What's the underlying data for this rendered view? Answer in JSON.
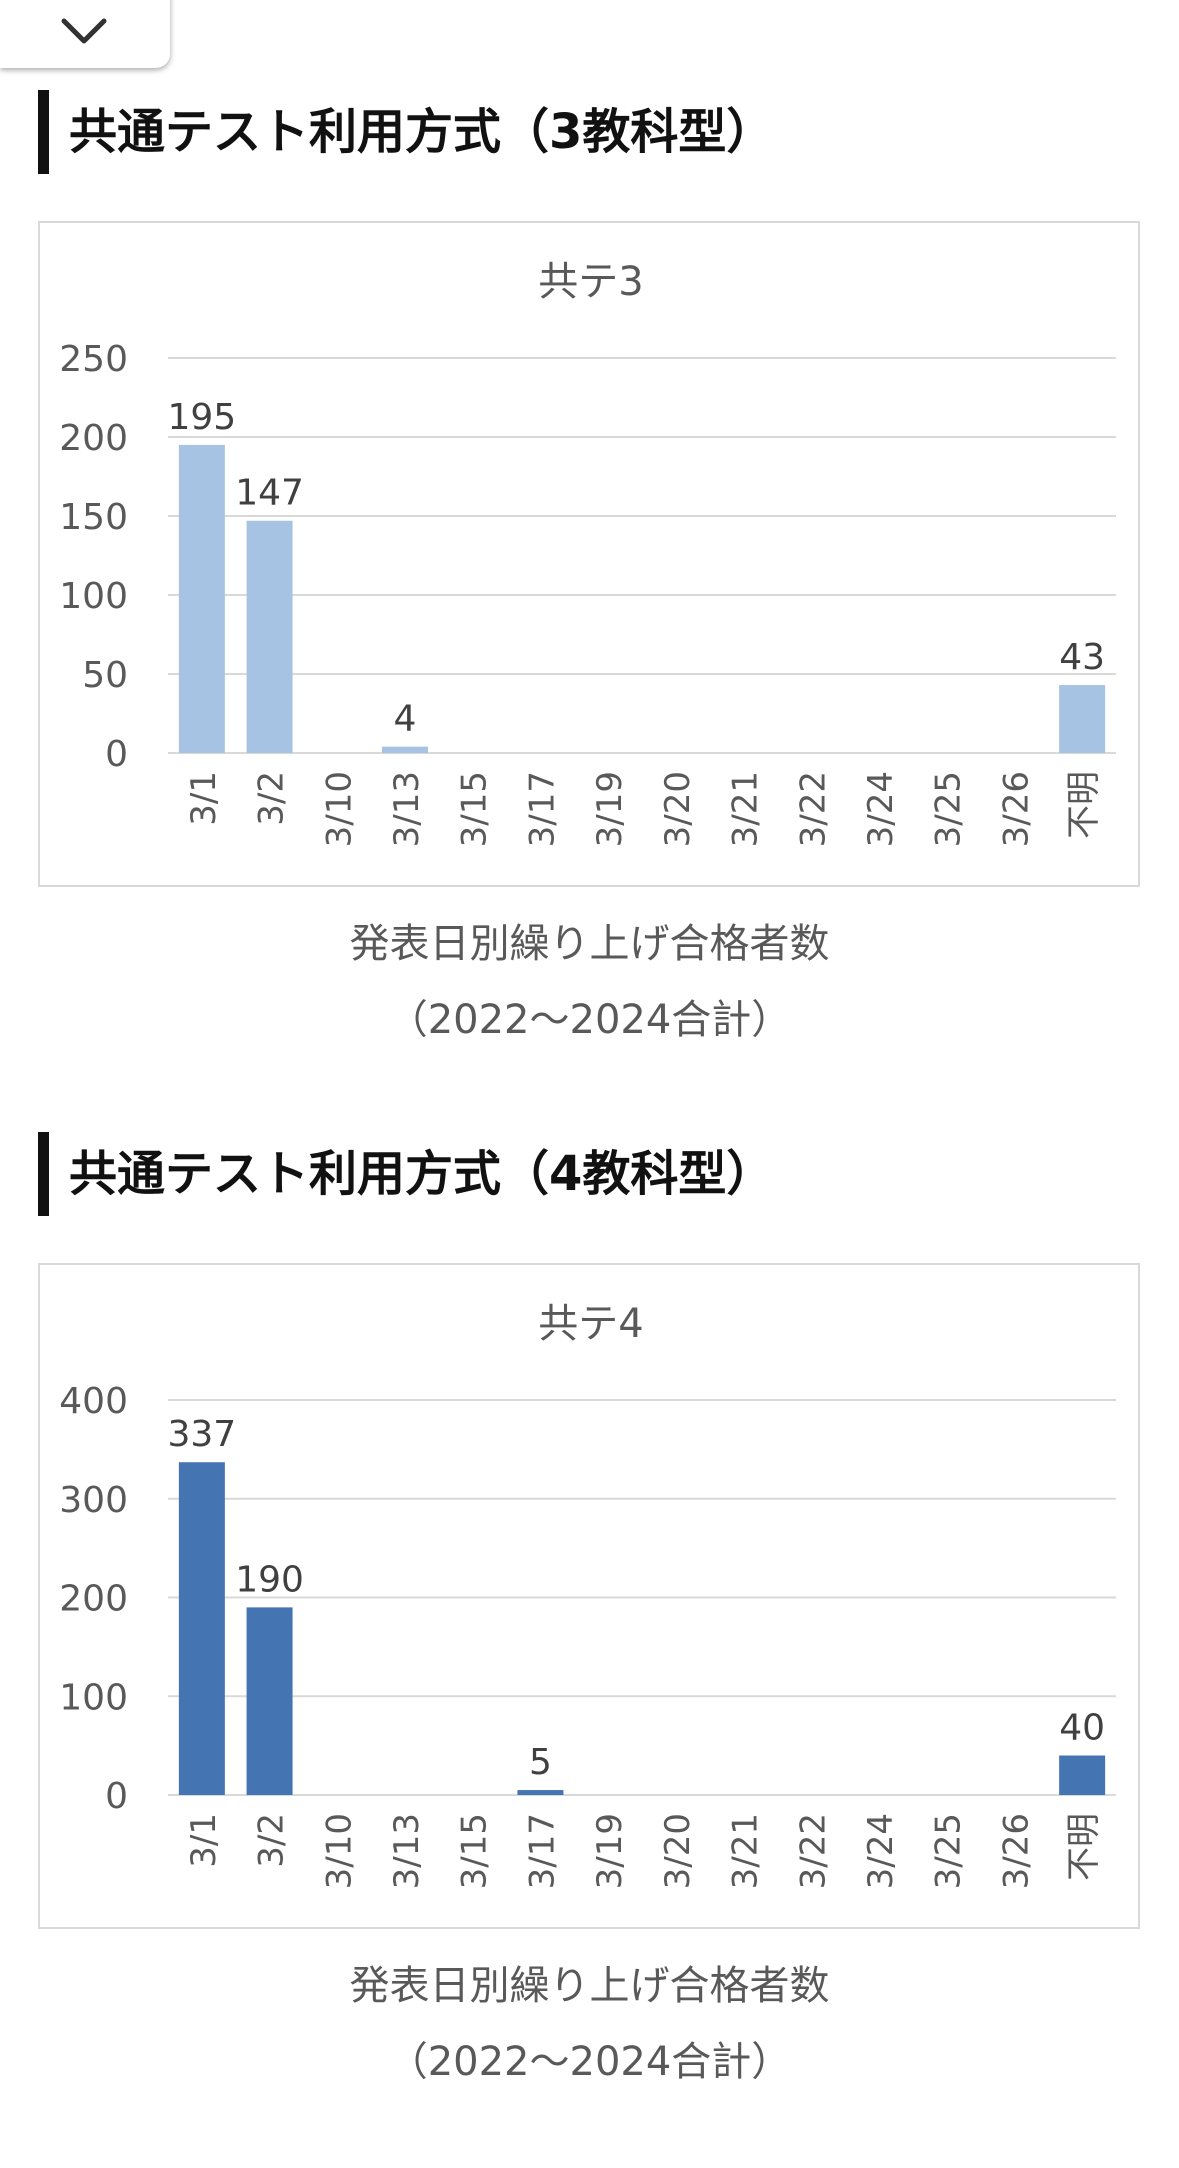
{
  "sections": [
    {
      "heading": "共通テスト利用方式（3教科型）",
      "caption_line1": "発表日別繰り上げ合格者数",
      "caption_line2": "（2022～2024合計）"
    },
    {
      "heading": "共通テスト利用方式（4教科型）",
      "caption_line1": "発表日別繰り上げ合格者数",
      "caption_line2": "（2022～2024合計）"
    }
  ],
  "chart_data": [
    {
      "type": "bar",
      "title": "共テ3",
      "categories": [
        "3/1",
        "3/2",
        "3/10",
        "3/13",
        "3/15",
        "3/17",
        "3/19",
        "3/20",
        "3/21",
        "3/22",
        "3/24",
        "3/25",
        "3/26",
        "不明"
      ],
      "values": [
        195,
        147,
        0,
        4,
        0,
        0,
        0,
        0,
        0,
        0,
        0,
        0,
        0,
        43
      ],
      "data_labels": [
        "195",
        "147",
        "",
        "4",
        "",
        "",
        "",
        "",
        "",
        "",
        "",
        "",
        "",
        "43"
      ],
      "yticks": [
        "0",
        "50",
        "100",
        "150",
        "200",
        "250"
      ],
      "ylim": [
        0,
        250
      ],
      "grid": true,
      "color": "#a6c3e4"
    },
    {
      "type": "bar",
      "title": "共テ4",
      "categories": [
        "3/1",
        "3/2",
        "3/10",
        "3/13",
        "3/15",
        "3/17",
        "3/19",
        "3/20",
        "3/21",
        "3/22",
        "3/24",
        "3/25",
        "3/26",
        "不明"
      ],
      "values": [
        337,
        190,
        0,
        0,
        0,
        5,
        0,
        0,
        0,
        0,
        0,
        0,
        0,
        40
      ],
      "data_labels": [
        "337",
        "190",
        "",
        "",
        "",
        "5",
        "",
        "",
        "",
        "",
        "",
        "",
        "",
        "40"
      ],
      "yticks": [
        "0",
        "100",
        "200",
        "300",
        "400"
      ],
      "ylim": [
        0,
        400
      ],
      "grid": true,
      "color": "#4474b2"
    }
  ]
}
